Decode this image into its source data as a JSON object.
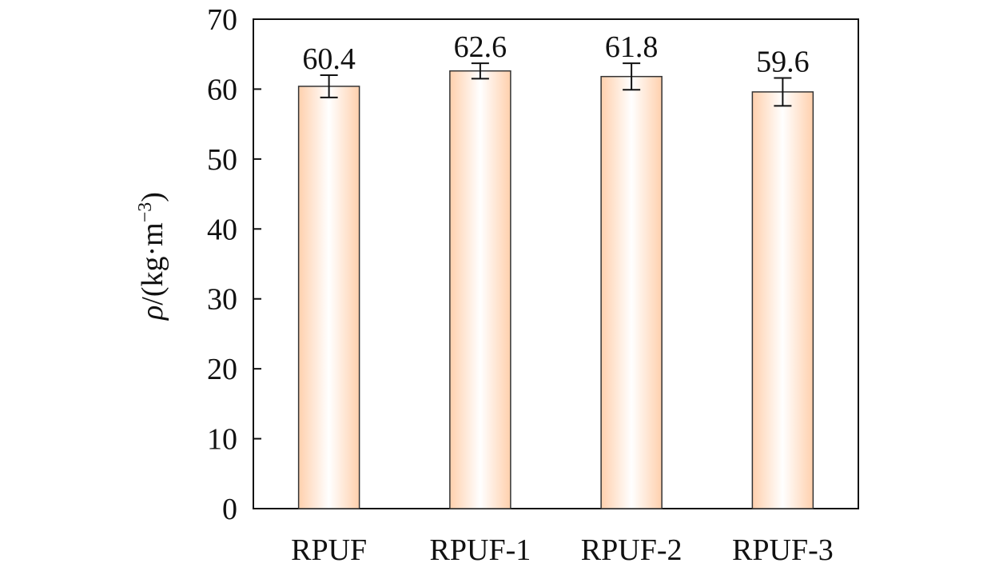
{
  "chart_data": {
    "type": "bar",
    "categories": [
      "RPUF",
      "RPUF-1",
      "RPUF-2",
      "RPUF-3"
    ],
    "values": [
      60.4,
      62.6,
      61.8,
      59.6
    ],
    "errors": [
      1.6,
      1.1,
      1.9,
      2.0
    ],
    "data_labels": [
      "60.4",
      "62.6",
      "61.8",
      "59.6"
    ],
    "title": "",
    "xlabel": "",
    "ylabel": "ρ/(kg·m⁻³)",
    "ylabel_parts": {
      "symbol": "ρ",
      "unit_prefix": "/(kg·m",
      "exponent": "−3",
      "close": ")"
    },
    "ylim": [
      0,
      70
    ],
    "yticks": [
      0,
      10,
      20,
      30,
      40,
      50,
      60,
      70
    ],
    "grid": false,
    "legend": "none",
    "colors": {
      "bar_edge": "#ffd2b0",
      "bar_center": "#ffffff",
      "bar_stroke": "#222222",
      "axis": "#111111"
    }
  }
}
